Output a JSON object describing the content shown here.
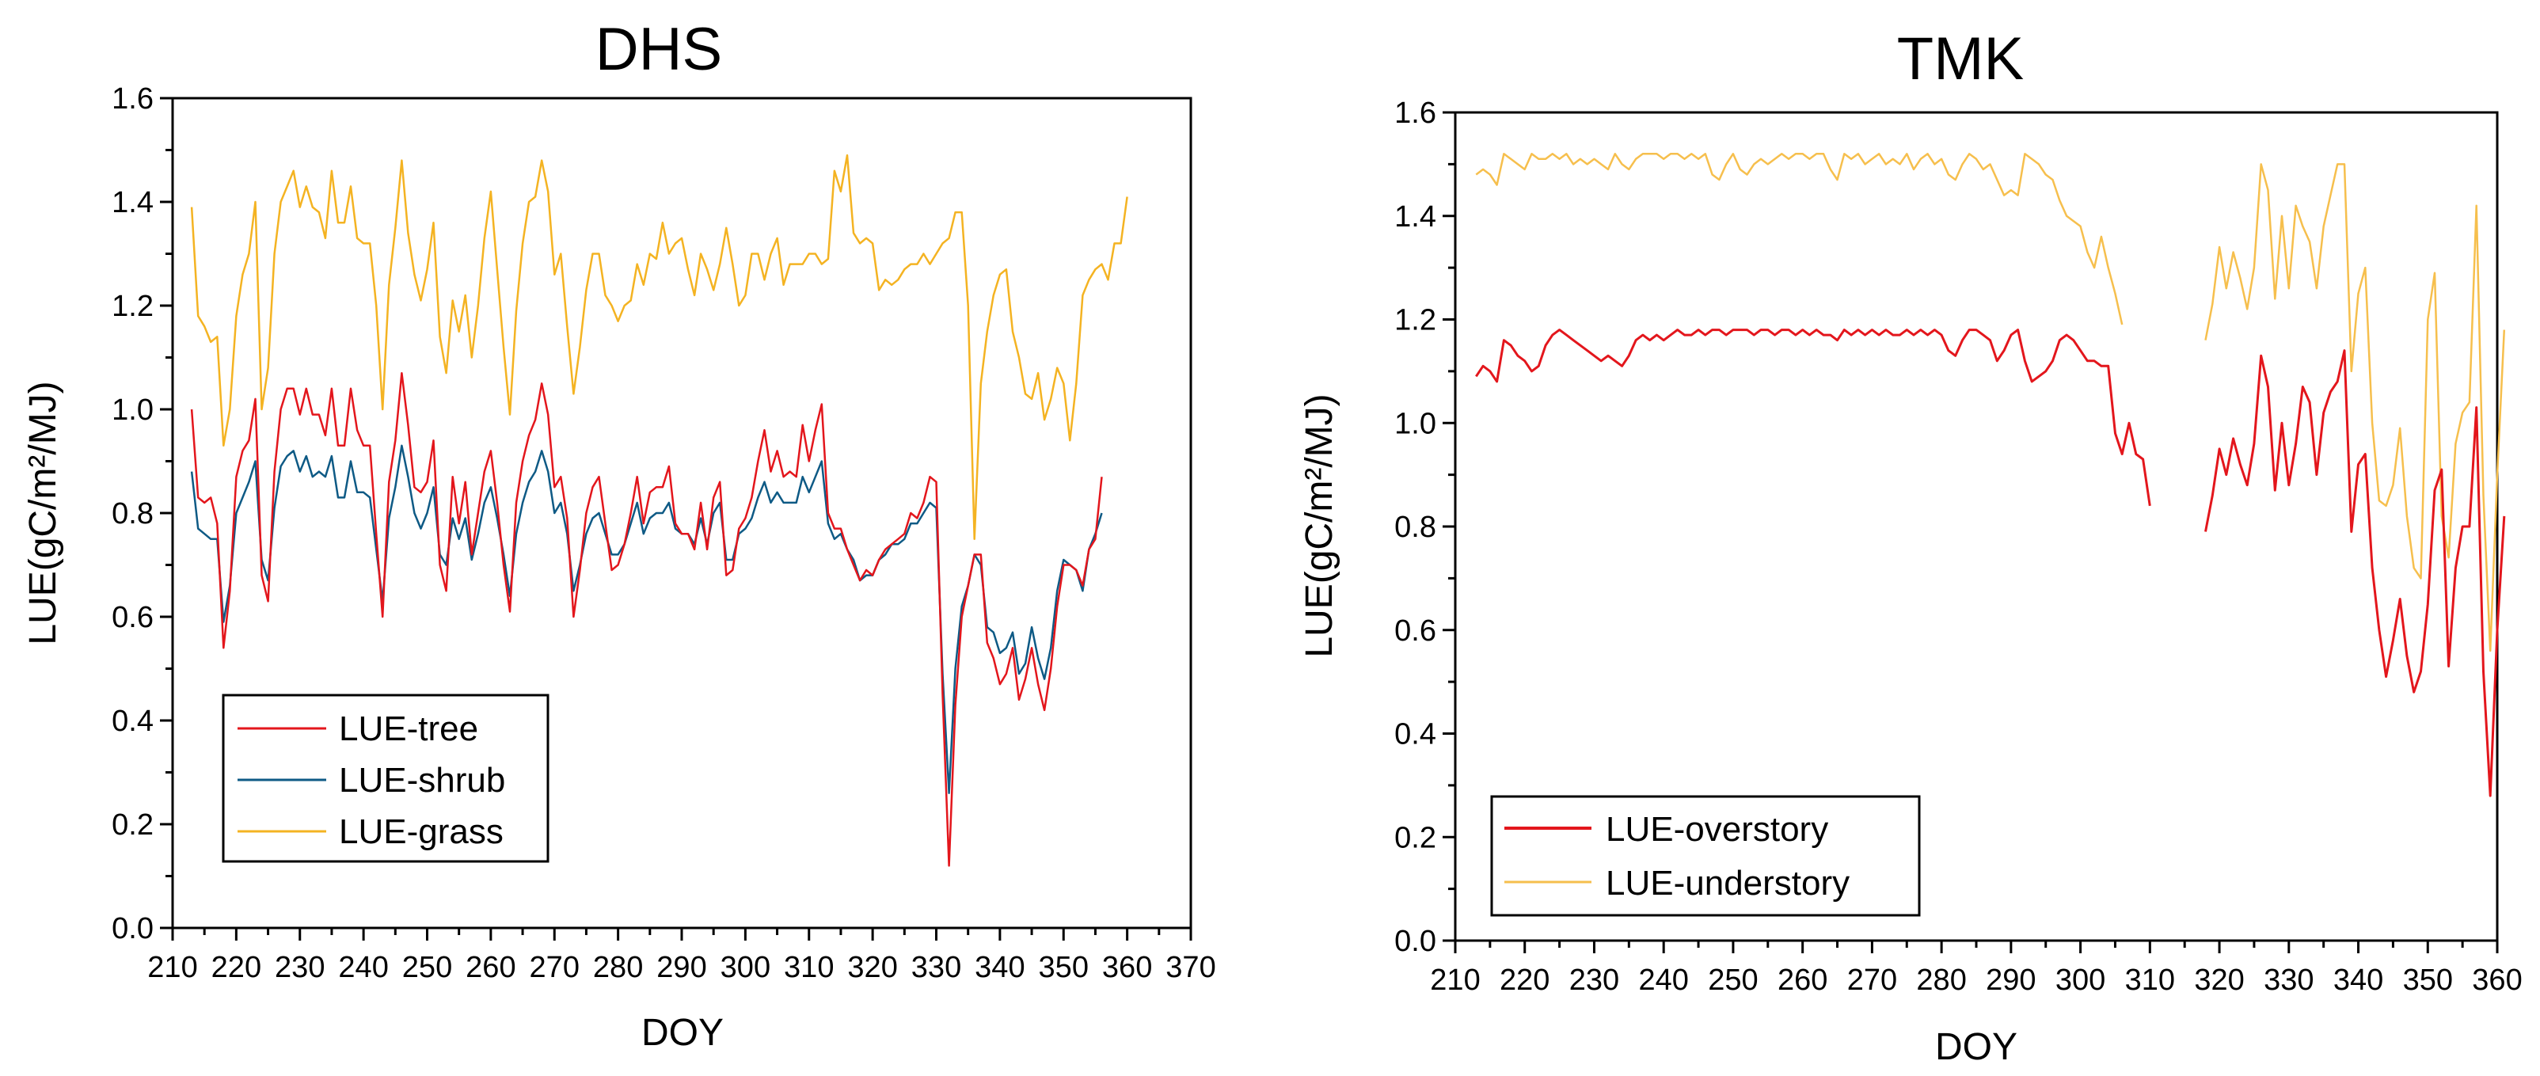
{
  "colors": {
    "tree": "#e3161c",
    "shrub": "#0e5a85",
    "grass": "#f4b322",
    "overstory": "#e3161c",
    "understory": "#f6bf4d",
    "axis": "#000000"
  },
  "chart_data": [
    {
      "type": "line",
      "title": "DHS",
      "xlabel": "DOY",
      "ylabel": "LUE(gC/m²/MJ)",
      "xlim": [
        210,
        370
      ],
      "ylim": [
        0.0,
        1.6
      ],
      "xticks": [
        "210",
        "220",
        "230",
        "240",
        "250",
        "260",
        "270",
        "280",
        "290",
        "300",
        "310",
        "320",
        "330",
        "340",
        "350",
        "360",
        "370"
      ],
      "yticks": [
        "0.0",
        "0.2",
        "0.4",
        "0.6",
        "0.8",
        "1.0",
        "1.2",
        "1.4",
        "1.6"
      ],
      "legend_position": "bottom-left",
      "x_start": 213,
      "series": [
        {
          "name": "LUE-tree",
          "color_key": "tree",
          "values": [
            1.0,
            0.83,
            0.82,
            0.83,
            0.78,
            0.54,
            0.65,
            0.87,
            0.92,
            0.94,
            1.02,
            0.68,
            0.63,
            0.88,
            1.0,
            1.04,
            1.04,
            0.99,
            1.04,
            0.99,
            0.99,
            0.95,
            1.04,
            0.93,
            0.93,
            1.04,
            0.96,
            0.93,
            0.93,
            0.76,
            0.6,
            0.86,
            0.94,
            1.07,
            0.97,
            0.85,
            0.84,
            0.86,
            0.94,
            0.7,
            0.65,
            0.87,
            0.78,
            0.86,
            0.72,
            0.8,
            0.88,
            0.92,
            0.82,
            0.7,
            0.61,
            0.82,
            0.9,
            0.95,
            0.98,
            1.05,
            0.99,
            0.85,
            0.87,
            0.79,
            0.6,
            0.69,
            0.8,
            0.85,
            0.87,
            0.78,
            0.69,
            0.7,
            0.74,
            0.8,
            0.87,
            0.78,
            0.84,
            0.85,
            0.85,
            0.89,
            0.78,
            0.76,
            0.76,
            0.73,
            0.82,
            0.73,
            0.83,
            0.86,
            0.68,
            0.69,
            0.77,
            0.79,
            0.83,
            0.9,
            0.96,
            0.88,
            0.92,
            0.87,
            0.88,
            0.87,
            0.97,
            0.9,
            0.96,
            1.01,
            0.8,
            0.77,
            0.77,
            0.73,
            0.7,
            0.67,
            0.69,
            0.68,
            0.71,
            0.73,
            0.74,
            0.75,
            0.76,
            0.8,
            0.79,
            0.82,
            0.87,
            0.86,
            0.45,
            0.12,
            0.43,
            0.6,
            0.66,
            0.72,
            0.72,
            0.55,
            0.52,
            0.47,
            0.49,
            0.54,
            0.44,
            0.48,
            0.54,
            0.47,
            0.42,
            0.5,
            0.62,
            0.7,
            0.7,
            0.69,
            0.66,
            0.73,
            0.75,
            0.87
          ]
        },
        {
          "name": "LUE-shrub",
          "color_key": "shrub",
          "values": [
            0.88,
            0.77,
            0.76,
            0.75,
            0.75,
            0.59,
            0.66,
            0.8,
            0.83,
            0.86,
            0.9,
            0.71,
            0.67,
            0.81,
            0.89,
            0.91,
            0.92,
            0.88,
            0.91,
            0.87,
            0.88,
            0.87,
            0.91,
            0.83,
            0.83,
            0.9,
            0.84,
            0.84,
            0.83,
            0.73,
            0.63,
            0.79,
            0.85,
            0.93,
            0.87,
            0.8,
            0.77,
            0.8,
            0.85,
            0.72,
            0.7,
            0.79,
            0.75,
            0.79,
            0.71,
            0.76,
            0.82,
            0.85,
            0.79,
            0.72,
            0.64,
            0.76,
            0.82,
            0.86,
            0.88,
            0.92,
            0.88,
            0.8,
            0.82,
            0.76,
            0.65,
            0.7,
            0.76,
            0.79,
            0.8,
            0.76,
            0.72,
            0.72,
            0.74,
            0.78,
            0.82,
            0.76,
            0.79,
            0.8,
            0.8,
            0.82,
            0.77,
            0.76,
            0.76,
            0.74,
            0.79,
            0.74,
            0.8,
            0.82,
            0.71,
            0.71,
            0.76,
            0.77,
            0.79,
            0.83,
            0.86,
            0.82,
            0.84,
            0.82,
            0.82,
            0.82,
            0.87,
            0.84,
            0.87,
            0.9,
            0.78,
            0.75,
            0.76,
            0.73,
            0.71,
            0.67,
            0.68,
            0.68,
            0.71,
            0.72,
            0.74,
            0.74,
            0.75,
            0.78,
            0.78,
            0.8,
            0.82,
            0.81,
            0.49,
            0.26,
            0.5,
            0.62,
            0.66,
            0.72,
            0.7,
            0.58,
            0.57,
            0.53,
            0.54,
            0.57,
            0.49,
            0.51,
            0.58,
            0.52,
            0.48,
            0.54,
            0.65,
            0.71,
            0.7,
            0.69,
            0.65,
            0.73,
            0.76,
            0.8
          ]
        },
        {
          "name": "LUE-grass",
          "color_key": "grass",
          "values": [
            1.39,
            1.18,
            1.16,
            1.13,
            1.14,
            0.93,
            1.0,
            1.18,
            1.26,
            1.3,
            1.4,
            1.0,
            1.08,
            1.3,
            1.4,
            1.43,
            1.46,
            1.39,
            1.43,
            1.39,
            1.38,
            1.33,
            1.46,
            1.36,
            1.36,
            1.43,
            1.33,
            1.32,
            1.32,
            1.2,
            1.0,
            1.24,
            1.35,
            1.48,
            1.34,
            1.26,
            1.21,
            1.27,
            1.36,
            1.14,
            1.07,
            1.21,
            1.15,
            1.22,
            1.1,
            1.2,
            1.33,
            1.42,
            1.27,
            1.12,
            0.99,
            1.19,
            1.32,
            1.4,
            1.41,
            1.48,
            1.42,
            1.26,
            1.3,
            1.16,
            1.03,
            1.12,
            1.23,
            1.3,
            1.3,
            1.22,
            1.2,
            1.17,
            1.2,
            1.21,
            1.28,
            1.24,
            1.3,
            1.29,
            1.36,
            1.3,
            1.32,
            1.33,
            1.27,
            1.22,
            1.3,
            1.27,
            1.23,
            1.28,
            1.35,
            1.28,
            1.2,
            1.22,
            1.3,
            1.3,
            1.25,
            1.3,
            1.33,
            1.24,
            1.28,
            1.28,
            1.28,
            1.3,
            1.3,
            1.28,
            1.29,
            1.46,
            1.42,
            1.49,
            1.34,
            1.32,
            1.33,
            1.32,
            1.23,
            1.25,
            1.24,
            1.25,
            1.27,
            1.28,
            1.28,
            1.3,
            1.28,
            1.3,
            1.32,
            1.33,
            1.38,
            1.38,
            1.2,
            0.75,
            1.05,
            1.15,
            1.22,
            1.26,
            1.27,
            1.15,
            1.1,
            1.03,
            1.02,
            1.07,
            0.98,
            1.02,
            1.08,
            1.05,
            0.94,
            1.05,
            1.22,
            1.25,
            1.27,
            1.28,
            1.25,
            1.32,
            1.32,
            1.41
          ]
        }
      ],
      "legend": [
        "LUE-tree",
        "LUE-shrub",
        "LUE-grass"
      ]
    },
    {
      "type": "line",
      "title": "TMK",
      "xlabel": "DOY",
      "ylabel": "LUE(gC/m²/MJ)",
      "xlim": [
        210,
        360
      ],
      "ylim": [
        0.0,
        1.6
      ],
      "xticks": [
        "210",
        "220",
        "230",
        "240",
        "250",
        "260",
        "270",
        "280",
        "290",
        "300",
        "310",
        "320",
        "330",
        "340",
        "350",
        "360"
      ],
      "yticks": [
        "0.0",
        "0.2",
        "0.4",
        "0.6",
        "0.8",
        "1.0",
        "1.2",
        "1.4",
        "1.6"
      ],
      "legend_position": "bottom-left",
      "series": [
        {
          "name": "LUE-overstory",
          "color_key": "overstory",
          "segments": [
            {
              "x_start": 213,
              "values": [
                1.09,
                1.11,
                1.1,
                1.08,
                1.16,
                1.15,
                1.13,
                1.12,
                1.1,
                1.11,
                1.15,
                1.17,
                1.18,
                1.17,
                1.16,
                1.15,
                1.14,
                1.13,
                1.12,
                1.13,
                1.12,
                1.11,
                1.13,
                1.16,
                1.17,
                1.16,
                1.17,
                1.16,
                1.17,
                1.18,
                1.17,
                1.17,
                1.18,
                1.17,
                1.18,
                1.18,
                1.17,
                1.18,
                1.18,
                1.18,
                1.17,
                1.18,
                1.18,
                1.17,
                1.18,
                1.18,
                1.17,
                1.18,
                1.17,
                1.18,
                1.17,
                1.17,
                1.16,
                1.18,
                1.17,
                1.18,
                1.17,
                1.18,
                1.17,
                1.18,
                1.17,
                1.17,
                1.18,
                1.17,
                1.18,
                1.17,
                1.18,
                1.17,
                1.14,
                1.13,
                1.16,
                1.18,
                1.18,
                1.17,
                1.16,
                1.12,
                1.14,
                1.17,
                1.18,
                1.12,
                1.08,
                1.09,
                1.1,
                1.12,
                1.16,
                1.17,
                1.16,
                1.14,
                1.12,
                1.12,
                1.11,
                1.11,
                0.98,
                0.94,
                1.0,
                0.94,
                0.93,
                0.84
              ]
            },
            {
              "x_start": 318,
              "values": [
                0.79,
                0.86,
                0.95,
                0.9,
                0.97,
                0.92,
                0.88,
                0.96,
                1.13,
                1.07,
                0.87,
                1.0,
                0.88,
                0.96,
                1.07,
                1.04,
                0.9,
                1.02,
                1.06,
                1.08,
                1.14,
                0.79,
                0.92,
                0.94,
                0.72,
                0.6,
                0.51,
                0.58,
                0.66,
                0.55,
                0.48,
                0.52,
                0.65,
                0.87,
                0.91,
                0.53,
                0.72,
                0.8,
                0.8,
                1.03,
                0.52,
                0.28,
                0.6,
                0.82
              ]
            }
          ]
        },
        {
          "name": "LUE-understory",
          "color_key": "understory",
          "segments": [
            {
              "x_start": 213,
              "values": [
                1.48,
                1.49,
                1.48,
                1.46,
                1.52,
                1.51,
                1.5,
                1.49,
                1.52,
                1.51,
                1.51,
                1.52,
                1.51,
                1.52,
                1.5,
                1.51,
                1.5,
                1.51,
                1.5,
                1.49,
                1.52,
                1.5,
                1.49,
                1.51,
                1.52,
                1.52,
                1.52,
                1.51,
                1.52,
                1.52,
                1.51,
                1.52,
                1.51,
                1.52,
                1.48,
                1.47,
                1.5,
                1.52,
                1.49,
                1.48,
                1.5,
                1.51,
                1.5,
                1.51,
                1.52,
                1.51,
                1.52,
                1.52,
                1.51,
                1.52,
                1.52,
                1.49,
                1.47,
                1.52,
                1.51,
                1.52,
                1.5,
                1.51,
                1.52,
                1.5,
                1.51,
                1.5,
                1.52,
                1.49,
                1.51,
                1.52,
                1.5,
                1.51,
                1.48,
                1.47,
                1.5,
                1.52,
                1.51,
                1.49,
                1.5,
                1.47,
                1.44,
                1.45,
                1.44,
                1.52,
                1.51,
                1.5,
                1.48,
                1.47,
                1.43,
                1.4,
                1.39,
                1.38,
                1.33,
                1.3,
                1.36,
                1.3,
                1.25,
                1.19
              ]
            },
            {
              "x_start": 318,
              "values": [
                1.16,
                1.23,
                1.34,
                1.26,
                1.33,
                1.28,
                1.22,
                1.3,
                1.5,
                1.45,
                1.24,
                1.4,
                1.26,
                1.42,
                1.38,
                1.35,
                1.26,
                1.38,
                1.44,
                1.5,
                1.5,
                1.1,
                1.25,
                1.3,
                1.0,
                0.85,
                0.84,
                0.88,
                0.99,
                0.82,
                0.72,
                0.7,
                1.2,
                1.29,
                0.82,
                0.74,
                0.96,
                1.02,
                1.04,
                1.42,
                0.86,
                0.56,
                0.9,
                1.18
              ]
            }
          ]
        }
      ],
      "legend": [
        "LUE-overstory",
        "LUE-understory"
      ]
    }
  ]
}
